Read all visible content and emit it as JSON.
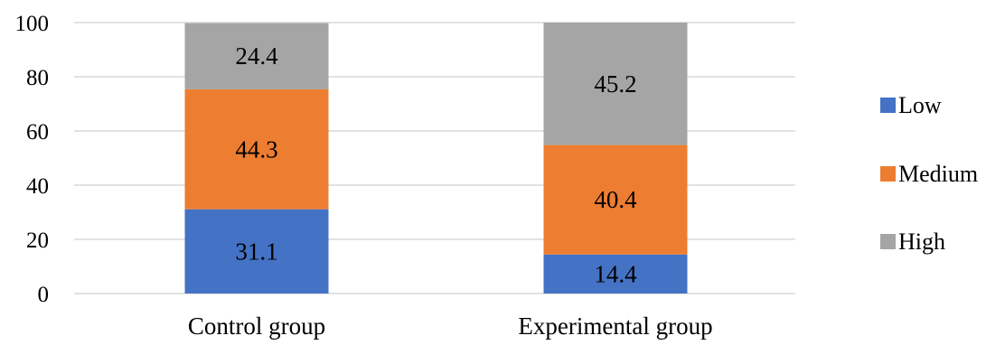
{
  "chart_data": {
    "type": "bar",
    "stacked": true,
    "categories": [
      "Control group",
      "Experimental group"
    ],
    "series": [
      {
        "name": "Low",
        "values": [
          31.1,
          14.4
        ],
        "color": "#4472c4"
      },
      {
        "name": "Medium",
        "values": [
          44.3,
          40.4
        ],
        "color": "#ed7d31"
      },
      {
        "name": "High",
        "values": [
          24.4,
          45.2
        ],
        "color": "#a5a5a5"
      }
    ],
    "yticks": [
      "0",
      "20",
      "40",
      "60",
      "80",
      "100"
    ],
    "ylim": [
      0,
      100
    ],
    "grid": true,
    "legend": "right"
  }
}
